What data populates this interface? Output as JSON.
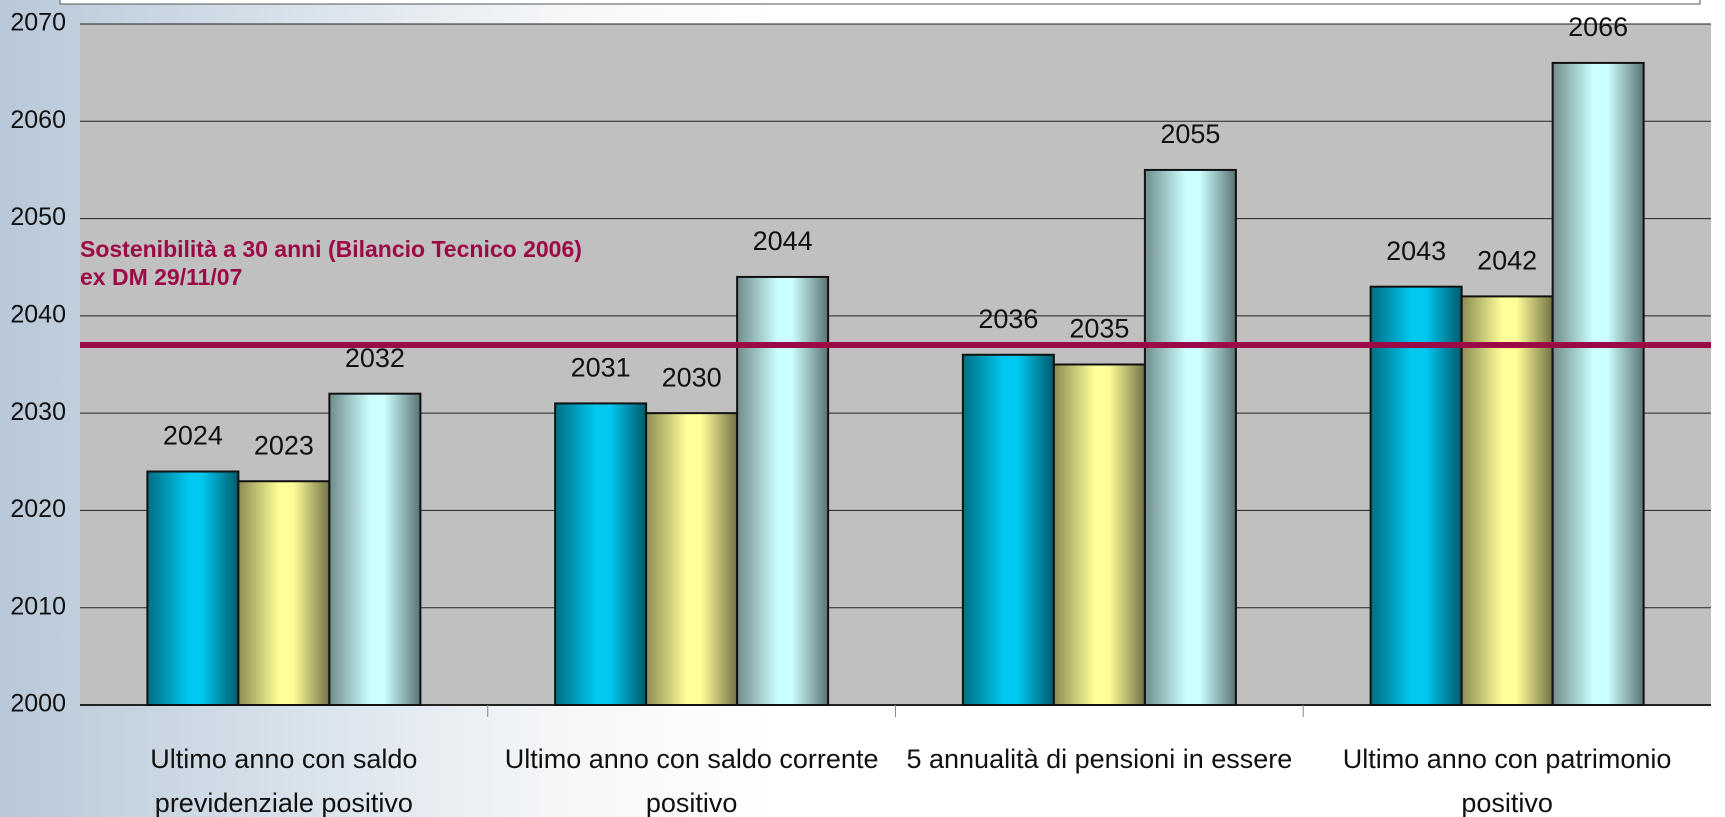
{
  "chart_data": {
    "type": "bar",
    "categories": [
      "Ultimo anno con saldo previdenziale positivo",
      "Ultimo anno con saldo corrente positivo",
      "5 annualità di pensioni in essere",
      "Ultimo anno con patrimonio positivo"
    ],
    "series": [
      {
        "color": "#00c8f0",
        "values": [
          2024,
          2031,
          2036,
          2043
        ]
      },
      {
        "color": "#ffff99",
        "values": [
          2023,
          2030,
          2035,
          2042
        ]
      },
      {
        "color": "#ccffff",
        "values": [
          2032,
          2044,
          2055,
          2066
        ]
      }
    ],
    "ylim": [
      2000,
      2070
    ],
    "yticks": [
      2000,
      2010,
      2020,
      2030,
      2040,
      2050,
      2060,
      2070
    ],
    "grid": true,
    "reference_line": {
      "value": 2037,
      "color": "#9b0a46",
      "label": [
        "Sostenibilità a 30 anni (Bilancio Tecnico 2006)",
        "ex DM 29/11/07"
      ]
    }
  }
}
